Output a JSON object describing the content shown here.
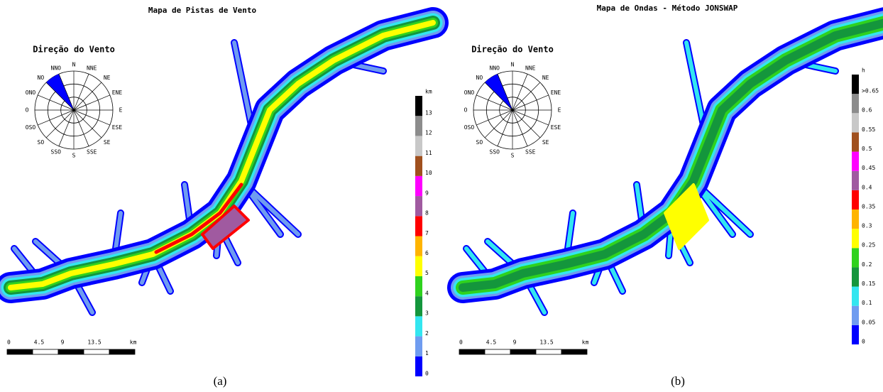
{
  "panels": [
    {
      "title": "Mapa de Pistas de Vento",
      "caption": "(a)",
      "compass": {
        "title": "Direção do Vento",
        "directions": [
          "N",
          "NNE",
          "NE",
          "ENE",
          "E",
          "ESE",
          "SE",
          "SSE",
          "S",
          "SSO",
          "SO",
          "OSO",
          "O",
          "ONO",
          "NO",
          "NNO"
        ]
      },
      "legend": {
        "unit": "km",
        "items": [
          {
            "label": "0",
            "color": "#0000ff"
          },
          {
            "label": "1",
            "color": "#6f9cf0"
          },
          {
            "label": "2",
            "color": "#33e6f0"
          },
          {
            "label": "3",
            "color": "#14963c"
          },
          {
            "label": "4",
            "color": "#2fd21e"
          },
          {
            "label": "5",
            "color": "#ffff00"
          },
          {
            "label": "6",
            "color": "#ffb400"
          },
          {
            "label": "7",
            "color": "#ff0000"
          },
          {
            "label": "8",
            "color": "#a05aa0"
          },
          {
            "label": "9",
            "color": "#ff00ff"
          },
          {
            "label": "10",
            "color": "#a0501e"
          },
          {
            "label": "11",
            "color": "#c8c8c8"
          },
          {
            "label": "12",
            "color": "#8c8c8c"
          },
          {
            "label": "13",
            "color": "#000000"
          }
        ]
      },
      "scale": {
        "labels": [
          "0",
          "4.5",
          "9",
          "13.5"
        ],
        "unit": "km"
      }
    },
    {
      "title": "Mapa de Ondas - Método JONSWAP",
      "caption": "(b)",
      "compass": {
        "title": "Direção do Vento",
        "directions": [
          "N",
          "NNE",
          "NE",
          "ENE",
          "E",
          "ESE",
          "SE",
          "SSE",
          "S",
          "SSO",
          "SO",
          "OSO",
          "O",
          "ONO",
          "NO",
          "NNO"
        ]
      },
      "legend": {
        "unit": "h",
        "items": [
          {
            "label": "0",
            "color": "#0000ff"
          },
          {
            "label": "0.05",
            "color": "#6f9cf0"
          },
          {
            "label": "0.1",
            "color": "#33e6f0"
          },
          {
            "label": "0.15",
            "color": "#14963c"
          },
          {
            "label": "0.2",
            "color": "#2fd21e"
          },
          {
            "label": "0.25",
            "color": "#ffff00"
          },
          {
            "label": "0.3",
            "color": "#ffb400"
          },
          {
            "label": "0.35",
            "color": "#ff0000"
          },
          {
            "label": "0.4",
            "color": "#a05aa0"
          },
          {
            "label": "0.45",
            "color": "#ff00ff"
          },
          {
            "label": "0.5",
            "color": "#a0501e"
          },
          {
            "label": "0.55",
            "color": "#c8c8c8"
          },
          {
            "label": "0.6",
            "color": "#8c8c8c"
          },
          {
            "label": ">0.65",
            "color": "#000000"
          }
        ]
      },
      "scale": {
        "labels": [
          "0",
          "4.5",
          "9",
          "13.5"
        ],
        "unit": "km"
      }
    }
  ]
}
